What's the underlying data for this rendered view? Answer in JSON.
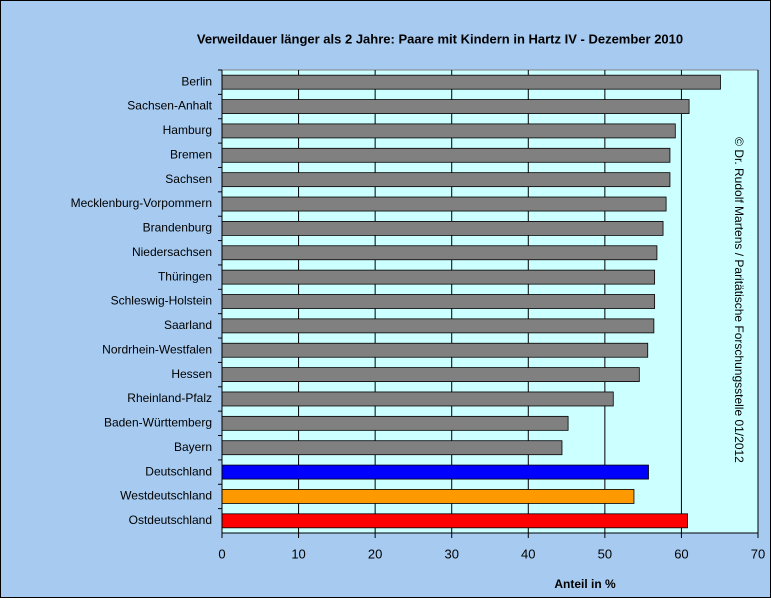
{
  "chart_data": {
    "type": "barh",
    "title": "Verweildauer länger als 2 Jahre: Paare mit Kindern in Hartz IV - Dezember 2010",
    "categories": [
      "Berlin",
      "Sachsen-Anhalt",
      "Hamburg",
      "Bremen",
      "Sachsen",
      "Mecklenburg-Vorpommern",
      "Brandenburg",
      "Niedersachsen",
      "Thüringen",
      "Schleswig-Holstein",
      "Saarland",
      "Nordrhein-Westfalen",
      "Hessen",
      "Rheinland-Pfalz",
      "Baden-Württemberg",
      "Bayern",
      "Deutschland",
      "Westdeutschland",
      "Ostdeutschland"
    ],
    "values": [
      65.1,
      61.0,
      59.2,
      58.5,
      58.5,
      58.0,
      57.6,
      56.8,
      56.5,
      56.5,
      56.4,
      55.6,
      54.5,
      51.1,
      45.2,
      44.4,
      55.7,
      53.8,
      60.8
    ],
    "colors": [
      "#808080",
      "#808080",
      "#808080",
      "#808080",
      "#808080",
      "#808080",
      "#808080",
      "#808080",
      "#808080",
      "#808080",
      "#808080",
      "#808080",
      "#808080",
      "#808080",
      "#808080",
      "#808080",
      "#0000ff",
      "#ff9900",
      "#ff0000"
    ],
    "xlim": [
      0,
      70
    ],
    "xticks": [
      0,
      10,
      20,
      30,
      40,
      50,
      60,
      70
    ],
    "grid": true,
    "xlabel": "Anteil in %",
    "annotation": "© Dr. Rudolf Martens / Paritätische Forschungsstelle 01/2012"
  }
}
